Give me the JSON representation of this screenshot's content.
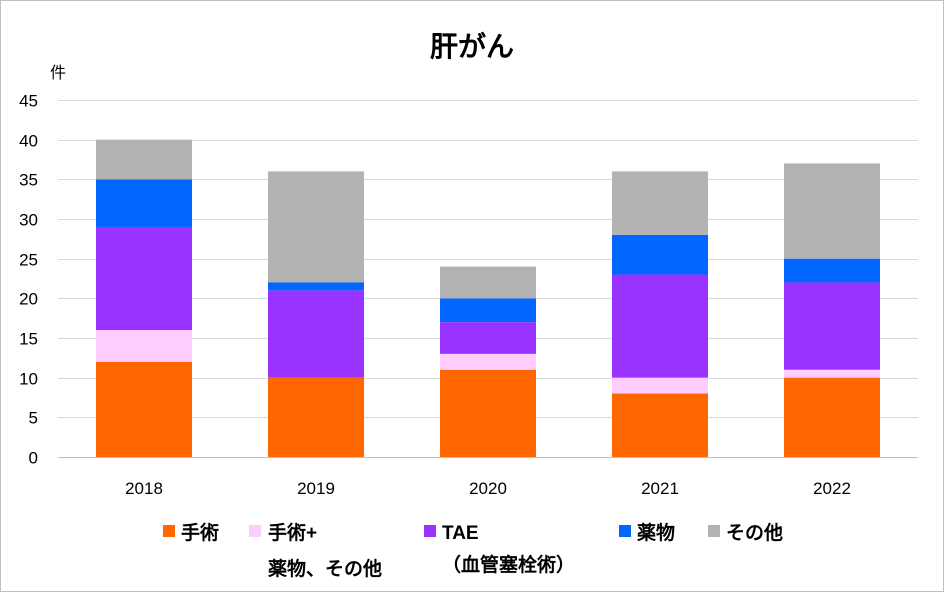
{
  "chart_data": {
    "type": "bar",
    "stacked": true,
    "title": "肝がん",
    "ylabel": "件",
    "xlabel": "",
    "categories": [
      "2018",
      "2019",
      "2020",
      "2021",
      "2022"
    ],
    "ylim": [
      0,
      45
    ],
    "yticks": [
      0,
      5,
      10,
      15,
      20,
      25,
      30,
      35,
      40,
      45
    ],
    "grid": true,
    "legend": "bottom",
    "series": [
      {
        "name_lines": [
          "手術"
        ],
        "color": "#FF6600",
        "values": [
          12,
          10,
          11,
          8,
          10
        ]
      },
      {
        "name_lines": [
          "手術+",
          "薬物、その他"
        ],
        "color": "#FFCCFF",
        "values": [
          4,
          0,
          2,
          2,
          1
        ]
      },
      {
        "name_lines": [
          "TAE",
          "（血管塞栓術）"
        ],
        "color": "#9933FF",
        "values": [
          13,
          11,
          4,
          13,
          11
        ]
      },
      {
        "name_lines": [
          "薬物"
        ],
        "color": "#0066FF",
        "values": [
          6,
          1,
          3,
          5,
          3
        ]
      },
      {
        "name_lines": [
          "その他"
        ],
        "color": "#B2B2B2",
        "values": [
          5,
          14,
          4,
          8,
          12
        ]
      }
    ]
  }
}
